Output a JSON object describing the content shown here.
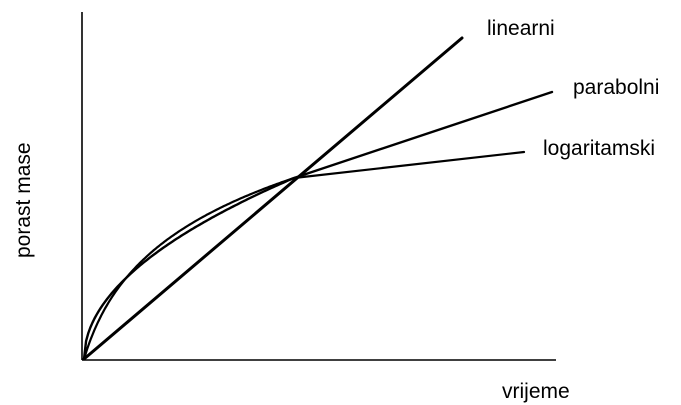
{
  "chart_data": {
    "type": "line",
    "title": "",
    "xlabel": "vrijeme",
    "ylabel": "porast  mase",
    "grid": false,
    "legend": "none",
    "series": [
      {
        "name": "linearni",
        "type": "linear"
      },
      {
        "name": "parabolni",
        "type": "parabolic"
      },
      {
        "name": "logaritamski",
        "type": "logarithmic"
      }
    ]
  }
}
